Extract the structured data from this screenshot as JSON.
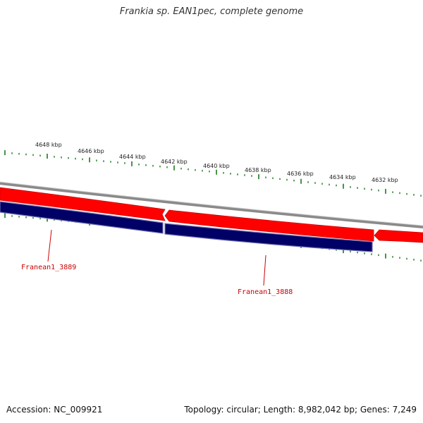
{
  "title": "Frankia sp. EAN1pec, complete genome",
  "footer": {
    "accession": "Accession: NC_009921",
    "summary": "Topology: circular; Length: 8,982,042 bp; Genes: 7,249"
  },
  "scale": {
    "unit": "kbp",
    "labels": [
      "4648 kbp",
      "4646 kbp",
      "4644 kbp",
      "4642 kbp",
      "4640 kbp",
      "4638 kbp",
      "4636 kbp",
      "4634 kbp",
      "4632 kbp"
    ]
  },
  "genes": [
    {
      "label": "Franean1_3889"
    },
    {
      "label": "Franean1_3888"
    }
  ],
  "colors": {
    "backbone": "#8a8a8a",
    "forward_strand": "#ff0000",
    "reverse_strand": "#000066",
    "ticks": "#1a7a1a",
    "gene_label": "#cc0000"
  }
}
